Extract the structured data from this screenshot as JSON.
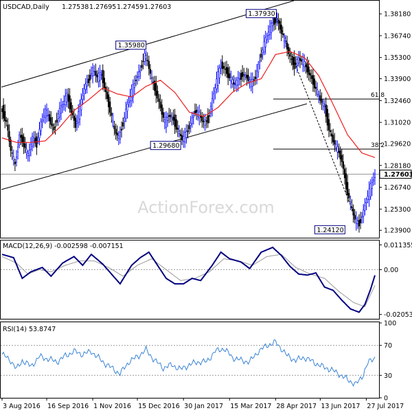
{
  "chart_data": {
    "type": "candlestick",
    "symbol_label": "USDCAD,Daily",
    "ohlc_label": {
      "open": "1.27538",
      "high": "1.27695",
      "low": "1.27459",
      "close": "1.27603"
    },
    "current_price_label": "1.27603",
    "watermark": "ActionForex.com",
    "colors": {
      "bull": "#0000ff",
      "bear": "#000000",
      "ma": "#ee1c1c",
      "macd": "#000080",
      "signal": "#999999",
      "rsi": "#3a84d6",
      "channel": "#000000",
      "price_line": "#999999"
    },
    "x_axis": {
      "tick_labels": [
        "3 Aug 2016",
        "16 Sep 2016",
        "1 Nov 2016",
        "15 Dec 2016",
        "30 Jan 2017",
        "15 Mar 2017",
        "28 Apr 2017",
        "13 Jun 2017",
        "27 Jul 2017"
      ],
      "tick_index": [
        0,
        31,
        63,
        94,
        126,
        158,
        190,
        221,
        253
      ],
      "bars": 260
    },
    "price_panel": {
      "ylim": [
        1.2341,
        1.3905
      ],
      "tick_labels": [
        "1.38180",
        "1.36740",
        "1.35300",
        "1.33900",
        "1.32460",
        "1.31020",
        "1.29620",
        "1.28180",
        "1.26740",
        "1.25300",
        "1.23900"
      ],
      "tick_values": [
        1.3818,
        1.3674,
        1.353,
        1.339,
        1.3246,
        1.3102,
        1.2962,
        1.2818,
        1.2674,
        1.253,
        1.239
      ],
      "key_levels": [
        {
          "label": "1.37930",
          "price": 1.3793,
          "bar": 191
        },
        {
          "label": "1.35980",
          "price": 1.3598,
          "bar": 100
        },
        {
          "label": "1.29680",
          "price": 1.2968,
          "bar": 126
        },
        {
          "label": "1.24120",
          "price": 1.2412,
          "bar": 242
        }
      ],
      "fib_levels": [
        {
          "label": "61.8",
          "price": 1.3256
        },
        {
          "label": "38.2",
          "price": 1.2926
        }
      ],
      "path": [
        [
          0,
          1.318
        ],
        [
          3,
          1.31
        ],
        [
          6,
          1.292
        ],
        [
          9,
          1.282
        ],
        [
          12,
          1.302
        ],
        [
          15,
          1.296
        ],
        [
          18,
          1.288
        ],
        [
          21,
          1.3
        ],
        [
          24,
          1.296
        ],
        [
          27,
          1.31
        ],
        [
          30,
          1.318
        ],
        [
          33,
          1.312
        ],
        [
          36,
          1.305
        ],
        [
          39,
          1.316
        ],
        [
          42,
          1.322
        ],
        [
          45,
          1.328
        ],
        [
          48,
          1.318
        ],
        [
          51,
          1.308
        ],
        [
          54,
          1.32
        ],
        [
          57,
          1.333
        ],
        [
          60,
          1.338
        ],
        [
          63,
          1.345
        ],
        [
          66,
          1.34
        ],
        [
          69,
          1.342
        ],
        [
          72,
          1.33
        ],
        [
          75,
          1.318
        ],
        [
          78,
          1.305
        ],
        [
          81,
          1.3
        ],
        [
          84,
          1.31
        ],
        [
          87,
          1.322
        ],
        [
          90,
          1.33
        ],
        [
          93,
          1.339
        ],
        [
          96,
          1.345
        ],
        [
          99,
          1.355
        ],
        [
          101,
          1.35
        ],
        [
          104,
          1.338
        ],
        [
          107,
          1.33
        ],
        [
          110,
          1.32
        ],
        [
          113,
          1.31
        ],
        [
          116,
          1.315
        ],
        [
          119,
          1.312
        ],
        [
          122,
          1.305
        ],
        [
          125,
          1.299
        ],
        [
          128,
          1.303
        ],
        [
          131,
          1.31
        ],
        [
          134,
          1.318
        ],
        [
          137,
          1.315
        ],
        [
          140,
          1.31
        ],
        [
          143,
          1.312
        ],
        [
          146,
          1.325
        ],
        [
          149,
          1.338
        ],
        [
          152,
          1.348
        ],
        [
          155,
          1.345
        ],
        [
          158,
          1.34
        ],
        [
          161,
          1.335
        ],
        [
          164,
          1.338
        ],
        [
          167,
          1.342
        ],
        [
          170,
          1.34
        ],
        [
          173,
          1.336
        ],
        [
          176,
          1.34
        ],
        [
          179,
          1.352
        ],
        [
          182,
          1.362
        ],
        [
          185,
          1.37
        ],
        [
          188,
          1.376
        ],
        [
          191,
          1.378
        ],
        [
          194,
          1.37
        ],
        [
          197,
          1.362
        ],
        [
          200,
          1.353
        ],
        [
          203,
          1.348
        ],
        [
          206,
          1.352
        ],
        [
          209,
          1.35
        ],
        [
          212,
          1.345
        ],
        [
          215,
          1.339
        ],
        [
          218,
          1.332
        ],
        [
          221,
          1.325
        ],
        [
          224,
          1.32
        ],
        [
          227,
          1.306
        ],
        [
          230,
          1.298
        ],
        [
          233,
          1.292
        ],
        [
          236,
          1.285
        ],
        [
          239,
          1.268
        ],
        [
          242,
          1.256
        ],
        [
          245,
          1.246
        ],
        [
          248,
          1.243
        ],
        [
          251,
          1.252
        ],
        [
          254,
          1.262
        ],
        [
          257,
          1.27
        ],
        [
          259,
          1.2765
        ]
      ],
      "ma_path": [
        [
          0,
          1.3
        ],
        [
          10,
          1.297
        ],
        [
          20,
          1.297
        ],
        [
          30,
          1.298
        ],
        [
          40,
          1.307
        ],
        [
          50,
          1.318
        ],
        [
          60,
          1.325
        ],
        [
          70,
          1.333
        ],
        [
          80,
          1.329
        ],
        [
          90,
          1.327
        ],
        [
          100,
          1.334
        ],
        [
          110,
          1.338
        ],
        [
          120,
          1.33
        ],
        [
          130,
          1.317
        ],
        [
          140,
          1.314
        ],
        [
          150,
          1.32
        ],
        [
          160,
          1.33
        ],
        [
          170,
          1.336
        ],
        [
          180,
          1.339
        ],
        [
          190,
          1.355
        ],
        [
          200,
          1.357
        ],
        [
          210,
          1.353
        ],
        [
          220,
          1.341
        ],
        [
          230,
          1.322
        ],
        [
          240,
          1.302
        ],
        [
          250,
          1.29
        ],
        [
          259,
          1.287
        ]
      ]
    },
    "macd_panel": {
      "label": "MACD(12,26,9) -0.002598 -0.007151",
      "ylim": [
        -0.02253,
        0.01336
      ],
      "tick_labels": [
        "0.011355",
        "0.00",
        "-0.020531"
      ],
      "tick_values": [
        0.011355,
        0.0,
        -0.020531
      ],
      "macd_path": [
        [
          0,
          0.007
        ],
        [
          8,
          0.0055
        ],
        [
          14,
          -0.004
        ],
        [
          20,
          -0.001
        ],
        [
          28,
          0.001
        ],
        [
          34,
          -0.003
        ],
        [
          42,
          0.003
        ],
        [
          50,
          0.006
        ],
        [
          56,
          0.002
        ],
        [
          62,
          0.007
        ],
        [
          70,
          0.0025
        ],
        [
          76,
          -0.002
        ],
        [
          82,
          -0.0065
        ],
        [
          90,
          0.002
        ],
        [
          96,
          0.0055
        ],
        [
          102,
          0.008
        ],
        [
          108,
          0.002
        ],
        [
          114,
          -0.004
        ],
        [
          120,
          -0.0065
        ],
        [
          126,
          -0.0065
        ],
        [
          132,
          -0.004
        ],
        [
          138,
          -0.005
        ],
        [
          146,
          0.002
        ],
        [
          152,
          0.008
        ],
        [
          158,
          0.005
        ],
        [
          166,
          0.0035
        ],
        [
          172,
          0.0005
        ],
        [
          180,
          0.008
        ],
        [
          188,
          0.0102
        ],
        [
          194,
          0.0065
        ],
        [
          200,
          0.0015
        ],
        [
          206,
          -0.002
        ],
        [
          212,
          -0.0025
        ],
        [
          218,
          -0.0015
        ],
        [
          224,
          -0.008
        ],
        [
          230,
          -0.0095
        ],
        [
          236,
          -0.014
        ],
        [
          242,
          -0.018
        ],
        [
          248,
          -0.0195
        ],
        [
          252,
          -0.016
        ],
        [
          256,
          -0.009
        ],
        [
          259,
          -0.0026
        ]
      ],
      "signal_path": [
        [
          0,
          0.006
        ],
        [
          10,
          0.003
        ],
        [
          18,
          -0.002
        ],
        [
          26,
          0.0
        ],
        [
          34,
          -0.001
        ],
        [
          44,
          0.002
        ],
        [
          54,
          0.004
        ],
        [
          64,
          0.004
        ],
        [
          74,
          0.001
        ],
        [
          84,
          -0.003
        ],
        [
          94,
          0.002
        ],
        [
          104,
          0.005
        ],
        [
          114,
          0.0
        ],
        [
          124,
          -0.005
        ],
        [
          134,
          -0.004
        ],
        [
          144,
          -0.001
        ],
        [
          154,
          0.005
        ],
        [
          164,
          0.004
        ],
        [
          174,
          0.002
        ],
        [
          184,
          0.006
        ],
        [
          194,
          0.007
        ],
        [
          204,
          0.001
        ],
        [
          214,
          -0.002
        ],
        [
          224,
          -0.004
        ],
        [
          234,
          -0.01
        ],
        [
          244,
          -0.015
        ],
        [
          252,
          -0.017
        ],
        [
          259,
          -0.0072
        ]
      ]
    },
    "rsi_panel": {
      "label": "RSI(14) 53.8747",
      "ylim": [
        0,
        100
      ],
      "tick_labels": [
        "100",
        "70",
        "30",
        "0"
      ],
      "tick_values": [
        100,
        70,
        30,
        0
      ],
      "rsi_path": [
        [
          0,
          58
        ],
        [
          6,
          50
        ],
        [
          10,
          38
        ],
        [
          14,
          50
        ],
        [
          20,
          42
        ],
        [
          26,
          55
        ],
        [
          32,
          52
        ],
        [
          38,
          48
        ],
        [
          44,
          56
        ],
        [
          50,
          62
        ],
        [
          56,
          58
        ],
        [
          62,
          62
        ],
        [
          70,
          48
        ],
        [
          76,
          40
        ],
        [
          82,
          32
        ],
        [
          88,
          48
        ],
        [
          94,
          55
        ],
        [
          100,
          64
        ],
        [
          106,
          50
        ],
        [
          112,
          40
        ],
        [
          118,
          44
        ],
        [
          124,
          38
        ],
        [
          130,
          44
        ],
        [
          136,
          48
        ],
        [
          142,
          48
        ],
        [
          148,
          62
        ],
        [
          154,
          66
        ],
        [
          160,
          54
        ],
        [
          166,
          50
        ],
        [
          172,
          48
        ],
        [
          178,
          62
        ],
        [
          184,
          70
        ],
        [
          190,
          74
        ],
        [
          194,
          66
        ],
        [
          198,
          56
        ],
        [
          204,
          50
        ],
        [
          210,
          54
        ],
        [
          216,
          48
        ],
        [
          222,
          42
        ],
        [
          228,
          38
        ],
        [
          234,
          32
        ],
        [
          240,
          24
        ],
        [
          246,
          18
        ],
        [
          250,
          28
        ],
        [
          254,
          46
        ],
        [
          259,
          54
        ]
      ]
    }
  }
}
